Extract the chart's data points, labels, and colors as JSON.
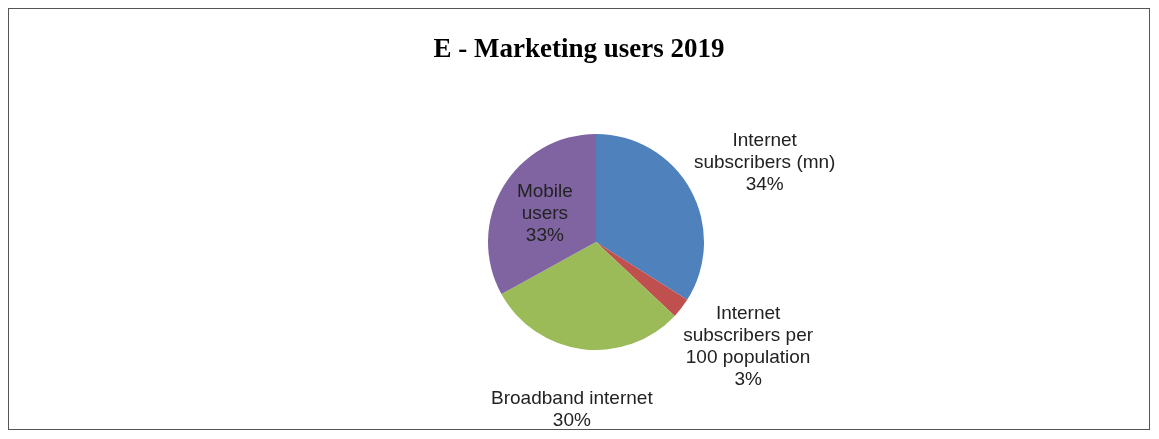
{
  "chart_data": {
    "type": "pie",
    "title": "E - Marketing users 2019",
    "categories": [
      "Internet subscribers (mn)",
      "Internet subscribers per 100 population",
      "Broadband internet",
      "Mobile users"
    ],
    "values": [
      34,
      3,
      30,
      33
    ],
    "colors": [
      "#4f81bd",
      "#c0504d",
      "#9bbb59",
      "#8064a2"
    ],
    "value_labels": [
      "34%",
      "3%",
      "30%",
      "33%"
    ]
  }
}
